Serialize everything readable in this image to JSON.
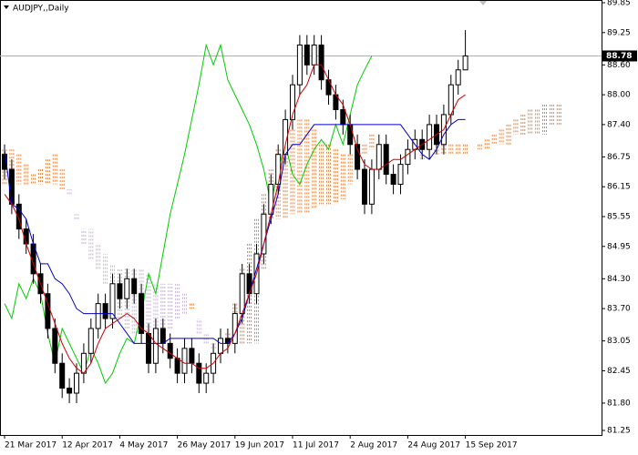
{
  "chart_data": {
    "type": "candlestick",
    "title": "AUDJPY,,Daily",
    "categories": [
      "21 Mar 2017",
      null,
      null,
      null,
      null,
      null,
      null,
      null,
      "12 Apr 2017",
      null,
      null,
      null,
      null,
      null,
      null,
      null,
      "4 May 2017",
      null,
      null,
      null,
      null,
      null,
      null,
      null,
      "26 May 2017",
      null,
      null,
      null,
      null,
      null,
      null,
      null,
      "19 Jun 2017",
      null,
      null,
      null,
      null,
      null,
      null,
      null,
      "11 Jul 2017",
      null,
      null,
      null,
      null,
      null,
      null,
      null,
      "2 Aug 2017",
      null,
      null,
      null,
      null,
      null,
      null,
      null,
      "24 Aug 2017",
      null,
      null,
      null,
      null,
      null,
      null,
      null,
      "15 Sep 2017"
    ],
    "open": [
      86.8,
      86.5,
      85.8,
      85.3,
      85.0,
      84.4,
      84.0,
      83.3,
      82.6,
      82.1,
      82.0,
      82.4,
      82.8,
      83.3,
      83.8,
      83.5,
      84.2,
      83.9,
      84.3,
      84.0,
      83.2,
      82.6,
      83.3,
      83.0,
      82.7,
      82.4,
      82.9,
      82.6,
      82.2,
      82.4,
      82.8,
      83.1,
      83.0,
      83.6,
      84.4,
      84.0,
      84.8,
      85.6,
      86.2,
      86.8,
      87.5,
      88.2,
      89.0,
      88.6,
      89.0,
      88.3,
      88.0,
      87.7,
      87.4,
      87.0,
      86.5,
      85.8,
      86.5,
      87.0,
      86.4,
      86.2,
      86.6,
      86.9,
      87.1,
      86.9,
      87.4,
      87.0,
      87.6,
      88.2,
      88.5
    ],
    "high": [
      87.0,
      86.7,
      86.0,
      85.5,
      85.2,
      84.6,
      84.2,
      83.5,
      82.8,
      82.3,
      82.6,
      83.0,
      83.5,
      84.0,
      84.0,
      84.4,
      84.4,
      84.5,
      84.5,
      84.2,
      83.4,
      83.5,
      83.5,
      83.2,
      82.9,
      83.1,
      83.1,
      82.8,
      82.6,
      83.0,
      83.3,
      83.3,
      83.8,
      84.6,
      84.6,
      85.0,
      85.8,
      86.4,
      87.0,
      87.7,
      88.4,
      89.2,
      89.2,
      89.2,
      89.2,
      88.5,
      88.2,
      87.9,
      87.6,
      87.2,
      86.7,
      86.7,
      87.2,
      87.2,
      86.6,
      86.8,
      87.1,
      87.3,
      87.3,
      87.6,
      87.6,
      87.8,
      88.4,
      88.7,
      89.3
    ],
    "low": [
      86.3,
      85.6,
      85.1,
      84.8,
      84.2,
      83.8,
      83.1,
      82.4,
      81.9,
      81.8,
      81.8,
      82.2,
      82.6,
      83.1,
      83.3,
      83.3,
      83.7,
      83.7,
      83.8,
      83.0,
      82.4,
      82.4,
      82.8,
      82.5,
      82.2,
      82.2,
      82.4,
      82.0,
      82.0,
      82.2,
      82.6,
      82.8,
      82.8,
      83.4,
      83.8,
      83.8,
      84.6,
      85.4,
      86.0,
      86.6,
      87.3,
      88.0,
      88.4,
      88.4,
      88.1,
      87.8,
      87.5,
      87.2,
      86.8,
      86.3,
      85.6,
      85.6,
      86.3,
      86.2,
      86.0,
      86.0,
      86.4,
      86.7,
      86.7,
      86.7,
      86.8,
      86.8,
      87.4,
      88.0,
      88.5
    ],
    "close": [
      86.5,
      85.8,
      85.3,
      85.0,
      84.4,
      84.0,
      83.3,
      82.6,
      82.1,
      82.0,
      82.4,
      82.8,
      83.3,
      83.8,
      83.5,
      84.2,
      83.9,
      84.3,
      84.0,
      83.2,
      82.6,
      83.3,
      83.0,
      82.7,
      82.4,
      82.9,
      82.6,
      82.2,
      82.4,
      82.8,
      83.1,
      83.0,
      83.6,
      84.4,
      84.0,
      84.8,
      85.6,
      86.2,
      86.8,
      87.5,
      88.2,
      89.0,
      88.6,
      89.0,
      88.3,
      88.0,
      87.7,
      87.4,
      87.0,
      86.5,
      85.8,
      86.5,
      87.0,
      86.4,
      86.2,
      86.6,
      86.9,
      87.1,
      86.9,
      87.4,
      87.0,
      87.6,
      88.2,
      88.5,
      88.78
    ],
    "up_color": "#ffffff",
    "down_color": "#000000",
    "wick_color": "#000000",
    "ichimoku": {
      "tenkan": {
        "color": "#cc0000",
        "values": [
          86.0,
          85.8,
          85.5,
          85.0,
          84.6,
          84.2,
          83.8,
          83.4,
          83.0,
          82.7,
          82.5,
          82.4,
          82.6,
          83.0,
          83.3,
          83.4,
          83.5,
          83.6,
          83.5,
          83.3,
          83.2,
          83.0,
          82.9,
          82.8,
          82.7,
          82.6,
          82.6,
          82.5,
          82.5,
          82.6,
          82.8,
          82.9,
          83.2,
          83.6,
          84.0,
          84.4,
          85.0,
          85.6,
          86.2,
          87.0,
          87.6,
          88.0,
          88.2,
          88.6,
          88.6,
          88.3,
          88.0,
          87.8,
          87.4,
          86.9,
          86.6,
          86.5,
          86.5,
          86.6,
          86.7,
          86.7,
          86.8,
          86.9,
          87.0,
          87.1,
          87.2,
          87.3,
          87.6,
          87.9,
          88.0
        ]
      },
      "kijun": {
        "color": "#0000cc",
        "values": [
          86.9,
          85.8,
          85.7,
          85.5,
          85.0,
          84.6,
          84.6,
          84.3,
          84.2,
          84.0,
          83.7,
          83.6,
          83.6,
          83.6,
          83.6,
          83.6,
          83.4,
          83.2,
          83.0,
          83.0,
          83.0,
          83.0,
          83.0,
          83.1,
          83.1,
          83.1,
          83.1,
          83.1,
          83.1,
          83.1,
          83.0,
          83.0,
          83.2,
          83.5,
          84.0,
          84.5,
          85.0,
          85.5,
          86.0,
          86.8,
          87.0,
          87.0,
          87.2,
          87.4,
          87.4,
          87.4,
          87.4,
          87.4,
          87.4,
          87.4,
          87.4,
          87.4,
          87.4,
          87.4,
          87.4,
          87.4,
          87.2,
          87.0,
          86.8,
          86.7,
          86.9,
          87.2,
          87.4,
          87.5,
          87.5
        ]
      },
      "chikou": {
        "color": "#00cc00",
        "values": [
          83.8,
          83.5,
          84.2,
          83.9,
          84.3,
          84.0,
          83.2,
          82.6,
          83.3,
          83.0,
          82.7,
          82.4,
          82.9,
          82.6,
          82.2,
          82.4,
          82.8,
          83.1,
          83.0,
          83.6,
          84.4,
          84.0,
          84.8,
          85.6,
          86.2,
          86.8,
          87.5,
          88.2,
          89.0,
          88.6,
          89.0,
          88.3,
          88.0,
          87.7,
          87.4,
          87.0,
          86.5,
          85.8,
          86.5,
          87.0,
          86.4,
          86.2,
          86.6,
          86.9,
          87.1,
          86.9,
          87.4,
          87.0,
          87.6,
          88.2,
          88.5,
          88.78,
          null,
          null,
          null,
          null,
          null,
          null,
          null,
          null,
          null,
          null,
          null,
          null,
          null
        ]
      },
      "senkou_a": [
        86.9,
        86.9,
        86.8,
        86.6,
        86.4,
        86.5,
        86.7,
        86.8,
        86.5,
        86.0,
        85.5,
        85.0,
        84.7,
        84.5,
        84.2,
        83.8,
        83.5,
        83.3,
        83.2,
        83.2,
        83.1,
        83.2,
        83.3,
        83.3,
        83.5,
        83.6,
        83.8,
        83.2,
        83.0,
        82.9,
        83.0,
        83.2,
        83.8,
        84.5,
        85.0,
        85.5,
        86.0,
        86.5,
        86.9,
        87.1,
        87.3,
        87.5,
        87.5,
        87.3,
        87.0,
        87.0,
        86.9,
        86.8,
        86.8,
        86.9,
        87.0,
        87.2,
        87.0,
        87.0,
        86.9,
        86.9,
        86.8,
        86.8,
        86.7,
        86.8,
        86.9,
        87.0,
        87.0,
        87.0,
        87.0,
        86.9,
        87.0,
        87.1,
        87.2,
        87.3,
        87.4,
        87.5,
        87.6,
        87.7,
        87.7,
        87.8,
        87.8,
        87.8
      ],
      "senkou_b": [
        86.2,
        86.2,
        86.2,
        86.2,
        86.2,
        86.2,
        86.2,
        86.2,
        86.1,
        86.1,
        85.6,
        85.3,
        85.3,
        85.0,
        84.8,
        84.6,
        84.5,
        84.5,
        84.5,
        84.5,
        84.4,
        84.2,
        84.2,
        84.2,
        84.2,
        84.0,
        83.7,
        83.5,
        83.2,
        83.0,
        83.0,
        83.0,
        83.0,
        83.0,
        83.0,
        83.0,
        84.5,
        85.5,
        85.5,
        85.5,
        85.6,
        85.6,
        85.6,
        85.7,
        85.8,
        85.8,
        85.8,
        85.9,
        86.2,
        86.5,
        86.8,
        86.9,
        86.9,
        86.9,
        86.9,
        86.9,
        86.8,
        86.8,
        86.8,
        86.8,
        86.8,
        86.8,
        86.8,
        86.8,
        86.8,
        86.9,
        86.9,
        86.9,
        87.0,
        87.0,
        87.0,
        87.2,
        87.2,
        87.2,
        87.2,
        87.2,
        87.4,
        87.4
      ],
      "cloud_up_color": "#e8823c",
      "cloud_down_color": "#c8b4d8"
    },
    "ylim": [
      81.25,
      89.85
    ],
    "yticks": [
      89.85,
      89.25,
      {
        "value": 88.6,
        "label": "88.60"
      },
      {
        "value": 88,
        "label": "88.00"
      },
      {
        "value": 87.4,
        "label": "87.40"
      },
      86.75,
      86.15,
      85.55,
      84.95,
      {
        "value": 84.3,
        "label": "84.30"
      },
      {
        "value": 83.7,
        "label": "83.70"
      },
      83.05,
      82.45,
      {
        "value": 81.8,
        "label": "81.80"
      },
      81.25
    ],
    "grid": false
  }
}
